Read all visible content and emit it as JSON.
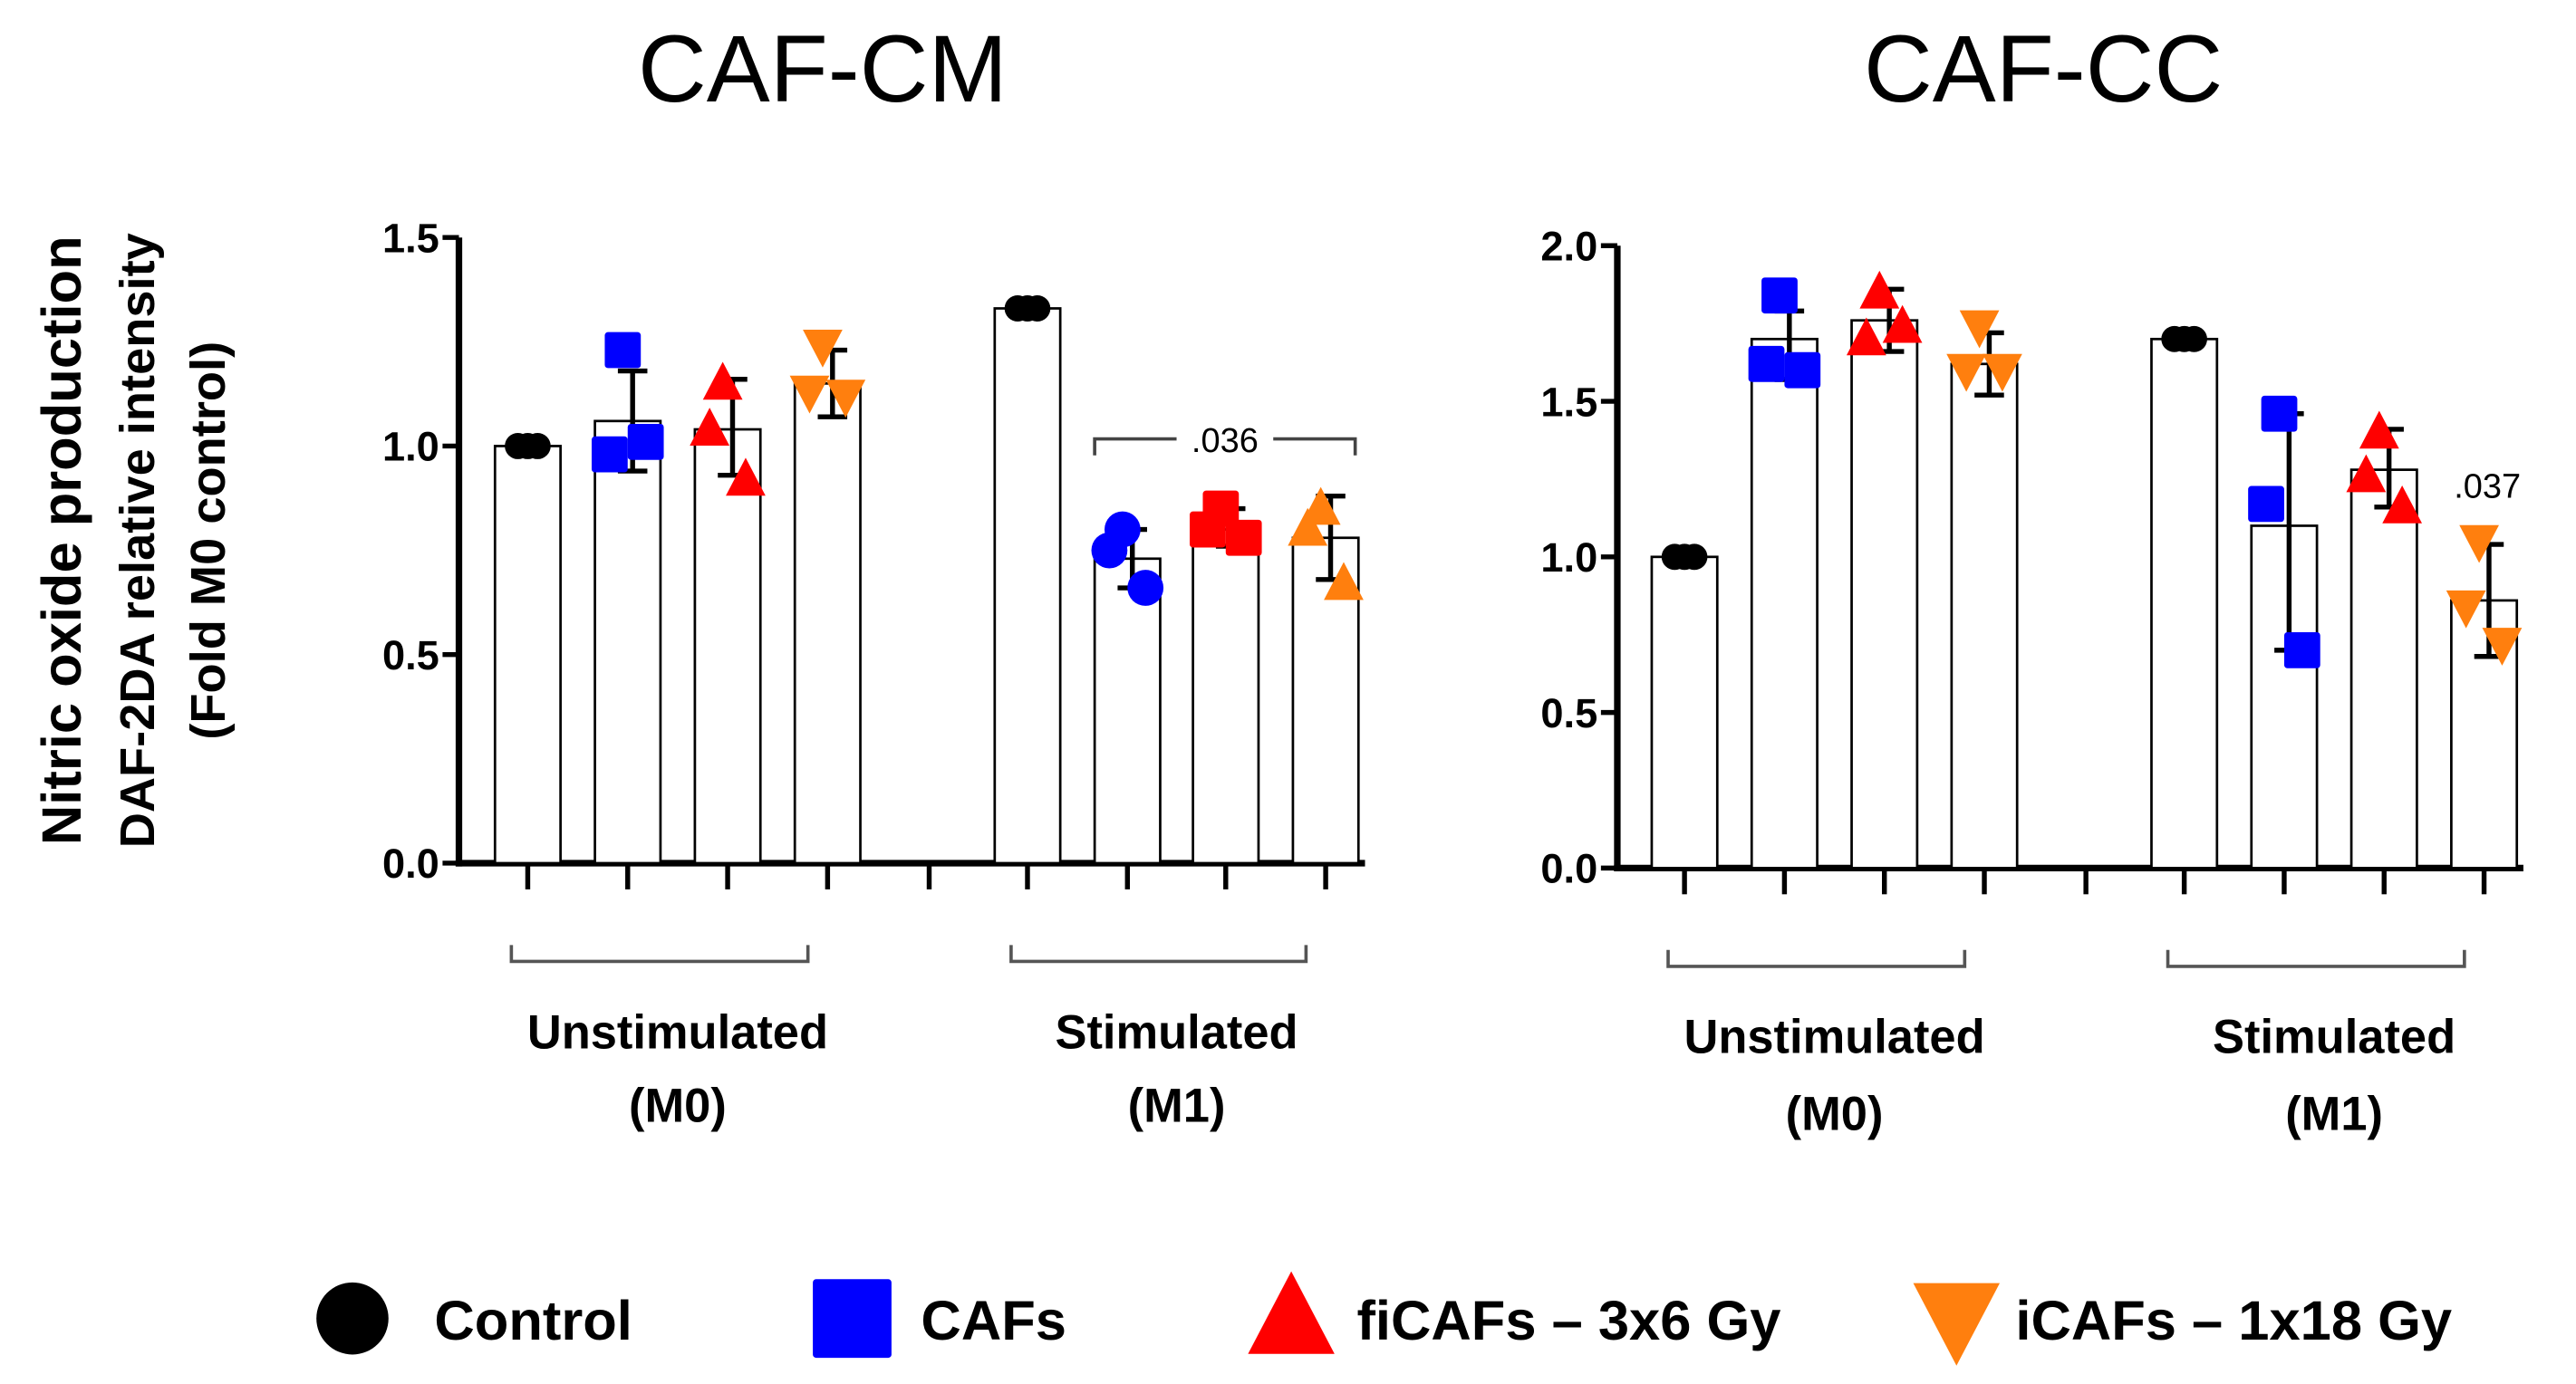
{
  "y_title": [
    "Nitric oxide production",
    "DAF-2DA relative intensity",
    "(Fold M0 control)"
  ],
  "legend": [
    {
      "label": "Control",
      "color": "#000000",
      "marker": "circle"
    },
    {
      "label": "CAFs",
      "color": "#0000ff",
      "marker": "square"
    },
    {
      "label": "fiCAFs – 3x6 Gy",
      "color": "#ff0000",
      "marker": "triangle-up"
    },
    {
      "label": "iCAFs – 1x18 Gy",
      "color": "#ff7f0e",
      "marker": "triangle-down"
    }
  ],
  "chart_data": [
    {
      "type": "bar",
      "title": "CAF-CM",
      "ylim": [
        0,
        1.5
      ],
      "yticks": [
        "0.0",
        "0.5",
        "1.0",
        "1.5"
      ],
      "groups": [
        {
          "label": [
            "Unstimulated",
            "(M0)"
          ],
          "bars": [
            {
              "series": "Control",
              "mean": 1.0,
              "err": [
                1.0,
                1.0
              ],
              "points": [
                1.0,
                1.0,
                1.0
              ],
              "marker": "circle"
            },
            {
              "series": "CAFs",
              "mean": 1.06,
              "err": [
                0.94,
                1.18
              ],
              "points": [
                1.23,
                0.98,
                1.01
              ],
              "marker": "square"
            },
            {
              "series": "fiCAFs – 3x6 Gy",
              "mean": 1.04,
              "err": [
                0.93,
                1.16
              ],
              "points": [
                1.15,
                1.04,
                0.92
              ],
              "marker": "triangle-up"
            },
            {
              "series": "iCAFs – 1x18 Gy",
              "mean": 1.15,
              "err": [
                1.07,
                1.23
              ],
              "points": [
                1.24,
                1.13,
                1.12
              ],
              "marker": "triangle-down"
            }
          ]
        },
        {
          "label": [
            "Stimulated",
            "(M1)"
          ],
          "bars": [
            {
              "series": "Control",
              "mean": 1.33,
              "err": [
                1.33,
                1.33
              ],
              "points": [
                1.33,
                1.33,
                1.33
              ],
              "marker": "circle"
            },
            {
              "series": "CAFs",
              "mean": 0.73,
              "err": [
                0.66,
                0.8
              ],
              "points": [
                0.8,
                0.75,
                0.66
              ],
              "marker": "circle"
            },
            {
              "series": "fiCAFs – 3x6 Gy",
              "mean": 0.8,
              "err": [
                0.76,
                0.85
              ],
              "points": [
                0.85,
                0.8,
                0.78
              ],
              "marker": "square"
            },
            {
              "series": "iCAFs – 1x18 Gy",
              "mean": 0.78,
              "err": [
                0.68,
                0.88
              ],
              "points": [
                0.85,
                0.8,
                0.67
              ],
              "marker": "triangle-up"
            }
          ]
        }
      ],
      "annotation": {
        "text": ".036",
        "from_bar": 5,
        "to_bar": 7
      }
    },
    {
      "type": "bar",
      "title": "CAF-CC",
      "ylim": [
        0,
        2.0
      ],
      "yticks": [
        "0.0",
        "0.5",
        "1.0",
        "1.5",
        "2.0"
      ],
      "groups": [
        {
          "label": [
            "Unstimulated",
            "(M0)"
          ],
          "bars": [
            {
              "series": "Control",
              "mean": 1.0,
              "err": [
                1.0,
                1.0
              ],
              "points": [
                1.0,
                1.0,
                1.0
              ],
              "marker": "circle"
            },
            {
              "series": "CAFs",
              "mean": 1.7,
              "err": [
                1.57,
                1.79
              ],
              "points": [
                1.84,
                1.62,
                1.6
              ],
              "marker": "square"
            },
            {
              "series": "fiCAFs – 3x6 Gy",
              "mean": 1.76,
              "err": [
                1.66,
                1.86
              ],
              "points": [
                1.85,
                1.7,
                1.74
              ],
              "marker": "triangle-up"
            },
            {
              "series": "iCAFs – 1x18 Gy",
              "mean": 1.62,
              "err": [
                1.52,
                1.72
              ],
              "points": [
                1.74,
                1.6,
                1.6
              ],
              "marker": "triangle-down"
            }
          ]
        },
        {
          "label": [
            "Stimulated",
            "(M1)"
          ],
          "bars": [
            {
              "series": "Control",
              "mean": 1.7,
              "err": [
                1.7,
                1.7
              ],
              "points": [
                1.7,
                1.7,
                1.7
              ],
              "marker": "circle"
            },
            {
              "series": "CAFs",
              "mean": 1.1,
              "err": [
                0.7,
                1.46
              ],
              "points": [
                1.46,
                1.17,
                0.7
              ],
              "marker": "square"
            },
            {
              "series": "fiCAFs – 3x6 Gy",
              "mean": 1.28,
              "err": [
                1.16,
                1.41
              ],
              "points": [
                1.4,
                1.26,
                1.16
              ],
              "marker": "triangle-up"
            },
            {
              "series": "iCAFs – 1x18 Gy",
              "mean": 0.86,
              "err": [
                0.68,
                1.04
              ],
              "points": [
                1.05,
                0.84,
                0.72
              ],
              "marker": "triangle-down"
            }
          ]
        }
      ],
      "annotation": {
        "text": ".037",
        "bar": 7
      }
    }
  ]
}
